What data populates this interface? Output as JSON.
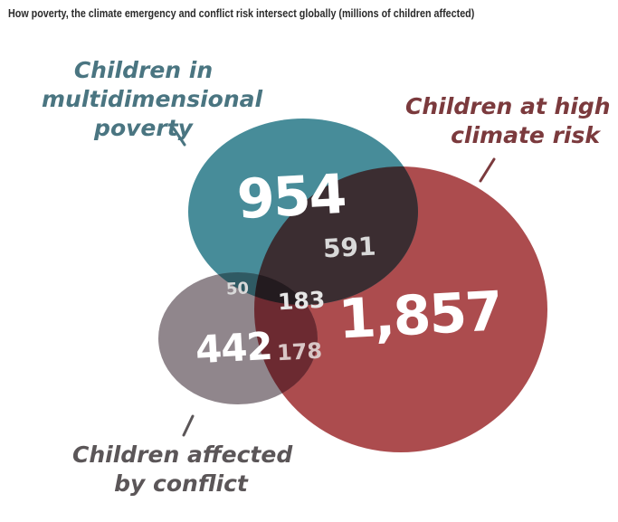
{
  "title": "How poverty, the climate emergency and conflict risk intersect globally (millions of children affected)",
  "sets": {
    "poverty": {
      "label_lines": [
        "Children in",
        "multidimensional",
        "poverty"
      ],
      "color": "#3d8694"
    },
    "climate": {
      "label_lines": [
        "Children at high",
        "climate risk"
      ],
      "color": "#a63e41"
    },
    "conflict": {
      "label_lines": [
        "Children affected",
        "by conflict"
      ],
      "color": "#8a7f86"
    }
  },
  "regions": {
    "poverty_only": "954",
    "climate_only": "1,857",
    "conflict_only": "442",
    "poverty_climate": "591",
    "poverty_conflict": "50",
    "climate_conflict": "178",
    "all_three": "183"
  },
  "colors": {
    "poverty": "#3d8694",
    "climate": "#a63e41",
    "conflict": "#8a7f86",
    "overlap_dark": "#3b2d31",
    "label_poverty": "#4a7581",
    "label_climate": "#7b3a3d",
    "label_conflict": "#5b5658"
  }
}
